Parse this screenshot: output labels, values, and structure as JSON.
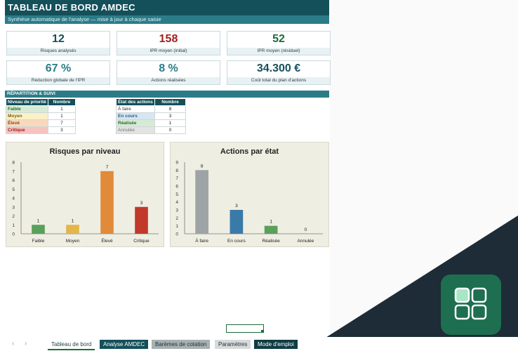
{
  "header": {
    "title": "TABLEAU DE BORD AMDEC",
    "subtitle": "Synthèse automatique de l'analyse — mise à jour à chaque saisie"
  },
  "kpis": [
    {
      "value": "12",
      "label": "Risques analysés",
      "color": "#14505a"
    },
    {
      "value": "158",
      "label": "IPR moyen (initial)",
      "color": "#a01e1e"
    },
    {
      "value": "52",
      "label": "IPR moyen (résiduel)",
      "color": "#1e6b3a"
    },
    {
      "value": "67 %",
      "label": "Réduction globale de l'IPR",
      "color": "#2b7c88"
    },
    {
      "value": "8 %",
      "label": "Actions réalisées",
      "color": "#2b7c88"
    },
    {
      "value": "34.300 €",
      "label": "Coût total du plan d'actions",
      "color": "#14505a"
    }
  ],
  "section": {
    "title": "RÉPARTITION & SUIVI"
  },
  "priority_table": {
    "headers": [
      "Niveau de priorité",
      "Nombre"
    ],
    "rows": [
      {
        "label": "Faible",
        "count": "1",
        "bg": "#d7ead6",
        "fg": "#2e6b2e"
      },
      {
        "label": "Moyen",
        "count": "1",
        "bg": "#fbf1c6",
        "fg": "#7a6410"
      },
      {
        "label": "Élevé",
        "count": "7",
        "bg": "#f8d9bd",
        "fg": "#8a4a10"
      },
      {
        "label": "Critique",
        "count": "3",
        "bg": "#f5c4c0",
        "fg": "#a01e1e"
      }
    ]
  },
  "actions_table": {
    "headers": [
      "État des actions",
      "Nombre"
    ],
    "rows": [
      {
        "label": "À faire",
        "count": "8",
        "bg": "#ffffff",
        "fg": "#333333"
      },
      {
        "label": "En cours",
        "count": "3",
        "bg": "#d6e6f2",
        "fg": "#2f5f85"
      },
      {
        "label": "Réalisée",
        "count": "1",
        "bg": "#d7ead6",
        "fg": "#2e6b2e"
      },
      {
        "label": "Annulée",
        "count": "0",
        "bg": "#e3e3e3",
        "fg": "#777777"
      }
    ]
  },
  "chart_data": [
    {
      "type": "bar",
      "title": "Risques par niveau",
      "categories": [
        "Faible",
        "Moyen",
        "Élevé",
        "Critique"
      ],
      "values": [
        1,
        1,
        7,
        3
      ],
      "colors": [
        "#5aa05a",
        "#e3b64a",
        "#e08a3a",
        "#c0392b"
      ],
      "ylim": [
        0,
        8
      ],
      "yticks": [
        0,
        1,
        2,
        3,
        4,
        5,
        6,
        7,
        8
      ],
      "grid": false
    },
    {
      "type": "bar",
      "title": "Actions par état",
      "categories": [
        "À faire",
        "En cours",
        "Réalisée",
        "Annulée"
      ],
      "values": [
        8,
        3,
        1,
        0
      ],
      "colors": [
        "#9ea3a6",
        "#3a7aa8",
        "#5aa05a",
        "#b0b0b0"
      ],
      "ylim": [
        0,
        9
      ],
      "yticks": [
        0,
        1,
        2,
        3,
        4,
        5,
        6,
        7,
        8,
        9
      ],
      "grid": false
    }
  ],
  "sheet_tabs": [
    {
      "label": "Tableau de bord",
      "active": true,
      "bg": "#ffffff",
      "fg": "#1f3f4a"
    },
    {
      "label": "Analyse AMDEC",
      "active": false,
      "bg": "#14505a",
      "fg": "#ffffff"
    },
    {
      "label": "Barèmes de cotation",
      "active": false,
      "bg": "#a7b0b2",
      "fg": "#1f2f33"
    },
    {
      "label": "Paramètres",
      "active": false,
      "bg": "#d7dadb",
      "fg": "#1f2f33"
    },
    {
      "label": "Mode d'emploi",
      "active": false,
      "bg": "#0f3c44",
      "fg": "#ffffff"
    }
  ],
  "nav": {
    "prev_icon": "‹",
    "next_icon": "›"
  },
  "app_icon": {
    "name": "grid-apps-icon",
    "color": "#1e6e50"
  }
}
